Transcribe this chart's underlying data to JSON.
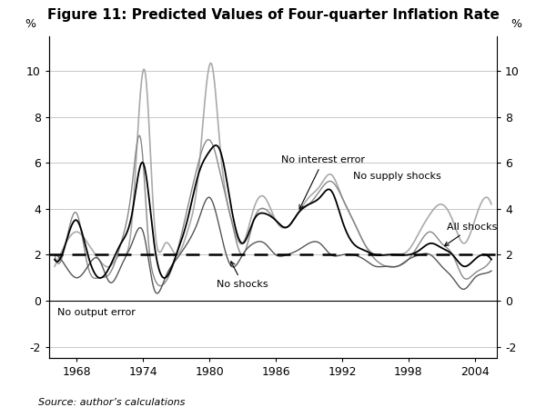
{
  "title": "Figure 11: Predicted Values of Four-quarter Inflation Rate",
  "ylabel_left": "%",
  "ylabel_right": "%",
  "source": "Source: author’s calculations",
  "ylim": [
    -2.5,
    11.5
  ],
  "yticks": [
    -2,
    0,
    2,
    4,
    6,
    8,
    10
  ],
  "xlim": [
    1965.5,
    2006.0
  ],
  "xticks": [
    1968,
    1974,
    1980,
    1986,
    1992,
    1998,
    2004
  ],
  "dashed_y": 2.0,
  "background_color": "#ffffff",
  "grid_color": "#b0b0b0",
  "line_no_supply_shocks": "#aaaaaa",
  "line_no_interest_error": "#888888",
  "line_no_shocks": "#555555",
  "line_all_shocks": "#000000"
}
